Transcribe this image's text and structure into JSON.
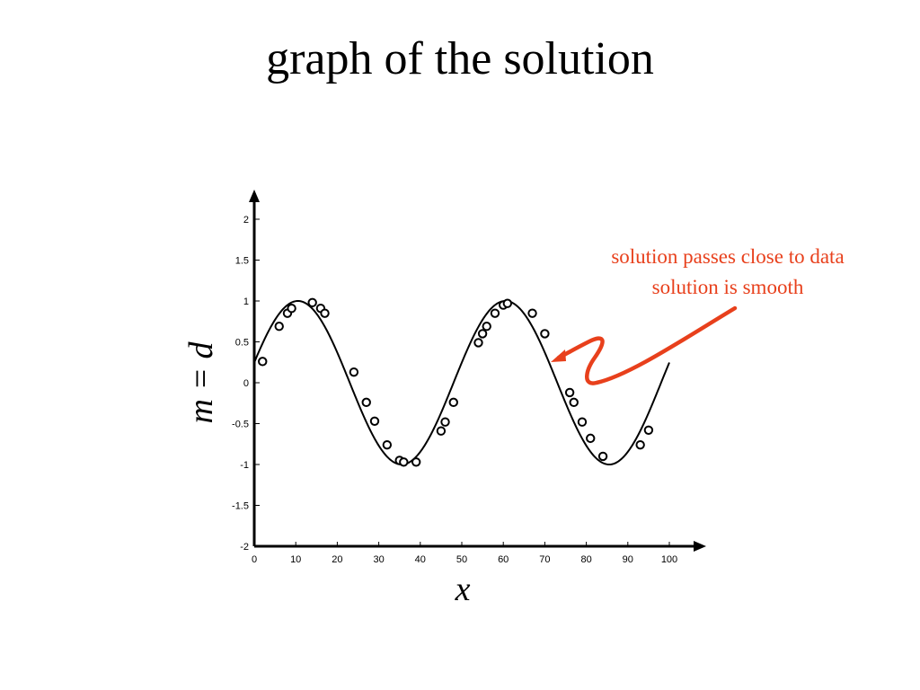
{
  "slide": {
    "title": "graph of the solution"
  },
  "colors": {
    "annotation": "#e8401c",
    "axis": "#000000",
    "curve": "#000000"
  },
  "chart_data": {
    "type": "scatter",
    "title": "",
    "xlabel": "x",
    "ylabel": "m = d",
    "xlim": [
      0,
      100
    ],
    "ylim": [
      -2,
      2
    ],
    "x_ticks": [
      0,
      10,
      20,
      30,
      40,
      50,
      60,
      70,
      80,
      90,
      100
    ],
    "y_ticks": [
      -2,
      -1.5,
      -1,
      -0.5,
      0,
      0.5,
      1,
      1.5,
      2
    ],
    "grid": false,
    "series": [
      {
        "kind": "points",
        "marker": "open-circle",
        "points": [
          [
            2,
            0.26
          ],
          [
            6,
            0.69
          ],
          [
            8,
            0.85
          ],
          [
            9,
            0.91
          ],
          [
            14,
            0.98
          ],
          [
            16,
            0.91
          ],
          [
            17,
            0.85
          ],
          [
            24,
            0.13
          ],
          [
            27,
            -0.24
          ],
          [
            29,
            -0.47
          ],
          [
            32,
            -0.76
          ],
          [
            35,
            -0.95
          ],
          [
            36,
            -0.97
          ],
          [
            39,
            -0.97
          ],
          [
            45,
            -0.59
          ],
          [
            46,
            -0.48
          ],
          [
            48,
            -0.24
          ],
          [
            54,
            0.49
          ],
          [
            55,
            0.6
          ],
          [
            56,
            0.69
          ],
          [
            58,
            0.85
          ],
          [
            60,
            0.95
          ],
          [
            61,
            0.97
          ],
          [
            67,
            0.85
          ],
          [
            70,
            0.6
          ],
          [
            76,
            -0.12
          ],
          [
            77,
            -0.24
          ],
          [
            79,
            -0.48
          ],
          [
            81,
            -0.68
          ],
          [
            84,
            -0.9
          ],
          [
            93,
            -0.76
          ],
          [
            95,
            -0.58
          ]
        ]
      },
      {
        "kind": "line",
        "function": "sin(2*pi*x/50 + 0.25)",
        "x": [
          0,
          100
        ]
      }
    ],
    "annotations": [
      {
        "text": "solution passes close to data",
        "color": "#e8401c"
      },
      {
        "text": "solution is smooth",
        "color": "#e8401c"
      }
    ]
  }
}
